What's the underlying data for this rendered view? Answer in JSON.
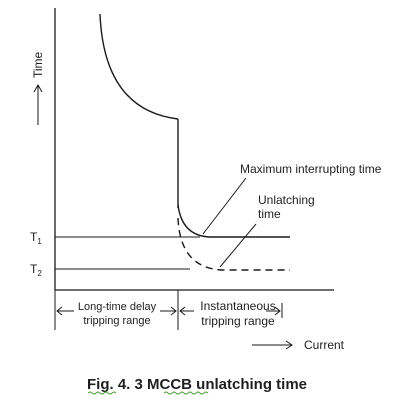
{
  "diagram": {
    "y_axis_label": "Time",
    "x_axis_label": "Current",
    "t1_label": "T",
    "t1_subscript": "1",
    "t2_label": "T",
    "t2_subscript": "2",
    "max_interrupting_label": "Maximum interrupting time",
    "unlatching_label_line1": "Unlatching",
    "unlatching_label_line2": "time",
    "long_time_line1": "Long-time delay",
    "long_time_line2": "tripping range",
    "instantaneous_line1": "Instantaneous",
    "instantaneous_line2": "tripping range",
    "caption_prefix": "Fig. 4. 3 ",
    "caption_acronym": "MCCB",
    "caption_suffix": " unlatching time",
    "colors": {
      "line": "#1a1a1a",
      "text": "#222222",
      "spellcheck_underline": "#4a9a3a"
    }
  }
}
